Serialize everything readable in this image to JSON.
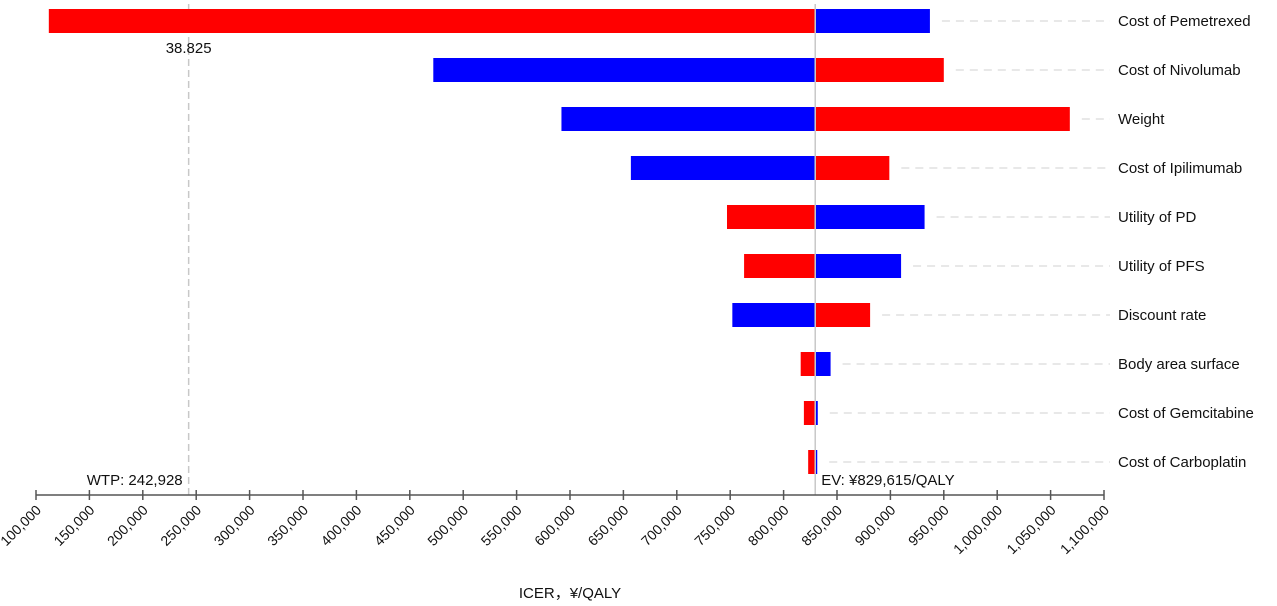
{
  "chart_data": {
    "type": "tornado",
    "xlabel": "ICER，¥/QALY",
    "xlim": [
      100000,
      1100000
    ],
    "xticks": [
      100000,
      150000,
      200000,
      250000,
      300000,
      350000,
      400000,
      450000,
      500000,
      550000,
      600000,
      650000,
      700000,
      750000,
      800000,
      850000,
      900000,
      950000,
      1000000,
      1050000,
      1100000
    ],
    "xtick_labels": [
      "100,000",
      "150,000",
      "200,000",
      "250,000",
      "300,000",
      "350,000",
      "400,000",
      "450,000",
      "500,000",
      "550,000",
      "600,000",
      "650,000",
      "700,000",
      "750,000",
      "800,000",
      "850,000",
      "900,000",
      "950,000",
      "1,000,000",
      "1,050,000",
      "1,100,000"
    ],
    "ev": 829615,
    "ev_label": "EV: ¥829,615/QALY",
    "wtp": 242928,
    "wtp_label": "WTP: 242,928",
    "wtp_top_label": "38.825",
    "colors": {
      "red": "#ff0000",
      "blue": "#0000ff"
    },
    "bars": [
      {
        "label": "Cost of Pemetrexed",
        "left": 112000,
        "left_color": "red",
        "right": 937000,
        "right_color": "blue"
      },
      {
        "label": "Cost of Nivolumab",
        "left": 472000,
        "left_color": "blue",
        "right": 950000,
        "right_color": "red"
      },
      {
        "label": "Weight",
        "left": 592000,
        "left_color": "blue",
        "right": 1068000,
        "right_color": "red"
      },
      {
        "label": "Cost of Ipilimumab",
        "left": 657000,
        "left_color": "blue",
        "right": 899000,
        "right_color": "red"
      },
      {
        "label": "Utility of PD",
        "left": 747000,
        "left_color": "red",
        "right": 932000,
        "right_color": "blue"
      },
      {
        "label": "Utility of PFS",
        "left": 763000,
        "left_color": "red",
        "right": 910000,
        "right_color": "blue"
      },
      {
        "label": "Discount rate",
        "left": 752000,
        "left_color": "blue",
        "right": 881000,
        "right_color": "red"
      },
      {
        "label": "Body area surface",
        "left": 816000,
        "left_color": "red",
        "right": 844000,
        "right_color": "blue"
      },
      {
        "label": "Cost of Gemcitabine",
        "left": 819000,
        "left_color": "red",
        "right": 832000,
        "right_color": "blue"
      },
      {
        "label": "Cost of Carboplatin",
        "left": 823000,
        "left_color": "red",
        "right": 831500,
        "right_color": "blue"
      }
    ]
  }
}
